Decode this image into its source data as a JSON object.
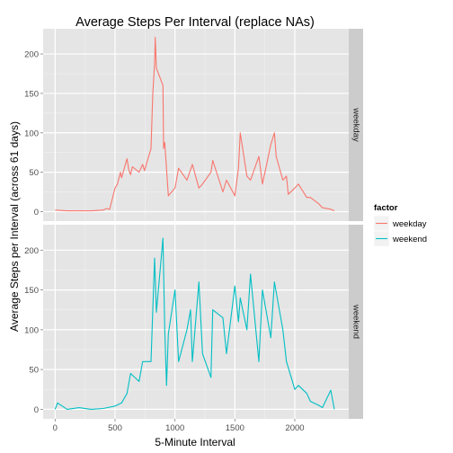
{
  "chart_data": {
    "type": "line",
    "title": "Average Steps Per Interval (replace NAs)",
    "xlabel": "5-Minute Interval",
    "ylabel": "Average Steps per Interval (across 61 days)",
    "xlim": [
      -100,
      2450
    ],
    "ylim": [
      -12,
      232
    ],
    "x_ticks": [
      0,
      500,
      1000,
      1500,
      2000
    ],
    "y_ticks": [
      0,
      50,
      100,
      150,
      200
    ],
    "x_tick_labels": [
      "0",
      "500",
      "1000",
      "1500",
      "2000"
    ],
    "y_tick_labels": [
      "0",
      "50",
      "100",
      "150",
      "200"
    ],
    "grid": true,
    "legend": {
      "title": "factor",
      "position": "right",
      "entries": [
        {
          "label": "weekday",
          "color": "#F8766D"
        },
        {
          "label": "weekend",
          "color": "#00BFC4"
        }
      ]
    },
    "facets": [
      {
        "strip_label": "weekday",
        "color": "#F8766D",
        "x": [
          0,
          100,
          200,
          300,
          400,
          430,
          455,
          500,
          520,
          545,
          555,
          600,
          615,
          630,
          645,
          700,
          715,
          730,
          745,
          800,
          815,
          830,
          835,
          845,
          900,
          905,
          915,
          945,
          1000,
          1030,
          1100,
          1145,
          1200,
          1230,
          1300,
          1315,
          1400,
          1430,
          1500,
          1530,
          1545,
          1600,
          1630,
          1700,
          1730,
          1800,
          1830,
          1845,
          1900,
          1930,
          1945,
          2000,
          2030,
          2100,
          2130,
          2200,
          2230,
          2300,
          2330
        ],
        "y": [
          2,
          1,
          1,
          1,
          2,
          4,
          3,
          30,
          35,
          50,
          43,
          67,
          53,
          47,
          57,
          50,
          55,
          60,
          52,
          80,
          150,
          188,
          221,
          182,
          160,
          80,
          88,
          20,
          30,
          55,
          40,
          60,
          30,
          35,
          50,
          65,
          25,
          40,
          20,
          55,
          100,
          45,
          40,
          70,
          35,
          85,
          100,
          70,
          40,
          45,
          22,
          30,
          35,
          18,
          18,
          10,
          5,
          3,
          1
        ]
      },
      {
        "strip_label": "weekend",
        "color": "#00BFC4",
        "x": [
          0,
          20,
          100,
          200,
          300,
          400,
          500,
          555,
          600,
          630,
          700,
          730,
          800,
          830,
          845,
          900,
          915,
          930,
          945,
          1000,
          1030,
          1100,
          1130,
          1145,
          1200,
          1230,
          1300,
          1315,
          1400,
          1430,
          1500,
          1530,
          1545,
          1600,
          1630,
          1700,
          1730,
          1800,
          1830,
          1900,
          1930,
          2000,
          2030,
          2100,
          2130,
          2200,
          2230,
          2300,
          2330
        ],
        "y": [
          0,
          8,
          0,
          2,
          0,
          1,
          4,
          8,
          20,
          45,
          35,
          60,
          60,
          190,
          122,
          215,
          100,
          30,
          95,
          150,
          60,
          100,
          125,
          60,
          160,
          70,
          40,
          125,
          115,
          70,
          155,
          110,
          140,
          100,
          170,
          60,
          150,
          90,
          160,
          100,
          60,
          25,
          30,
          20,
          10,
          5,
          2,
          24,
          0
        ]
      }
    ]
  }
}
